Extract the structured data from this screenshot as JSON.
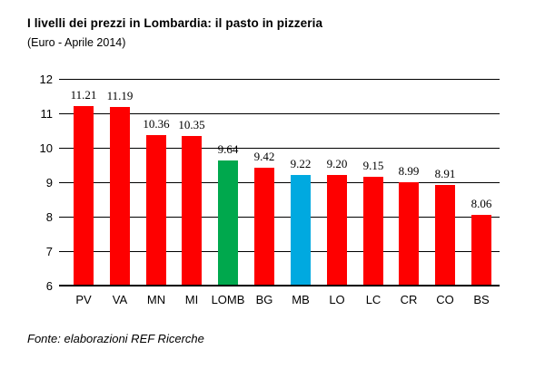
{
  "header": {
    "title": "I livelli dei prezzi in Lombardia: il pasto in pizzeria",
    "subtitle": "(Euro - Aprile 2014)"
  },
  "footer": {
    "source": "Fonte: elaborazioni REF Ricerche"
  },
  "colors": {
    "bar_default": "#fe0000",
    "bar_lombardia_highlight": "#00a84d",
    "bar_mb_highlight": "#00a9e0",
    "grid": "#000000",
    "text": "#000000",
    "background": "#ffffff"
  },
  "chart_data": {
    "type": "bar",
    "title": "I livelli dei prezzi in Lombardia: il pasto in pizzeria",
    "subtitle": "(Euro - Aprile 2014)",
    "categories": [
      "PV",
      "VA",
      "MN",
      "MI",
      "LOMB",
      "BG",
      "MB",
      "LO",
      "LC",
      "CR",
      "CO",
      "BS"
    ],
    "values": [
      11.21,
      11.19,
      10.36,
      10.35,
      9.64,
      9.42,
      9.22,
      9.2,
      9.15,
      8.99,
      8.91,
      8.06
    ],
    "value_labels": [
      "11.21",
      "11.19",
      "10.36",
      "10.35",
      "9.64",
      "9.42",
      "9.22",
      "9.20",
      "9.15",
      "8.99",
      "8.91",
      "8.06"
    ],
    "bar_colors": [
      "red",
      "red",
      "red",
      "red",
      "green",
      "red",
      "blue",
      "red",
      "red",
      "red",
      "red",
      "red"
    ],
    "xlabel": "",
    "ylabel": "",
    "ylim": [
      6,
      12
    ],
    "ytick_step": 1,
    "ytick_labels": [
      "6",
      "7",
      "8",
      "9",
      "10",
      "11",
      "12"
    ],
    "grid": "horizontal",
    "legend": "none",
    "source": "Fonte: elaborazioni REF Ricerche"
  }
}
